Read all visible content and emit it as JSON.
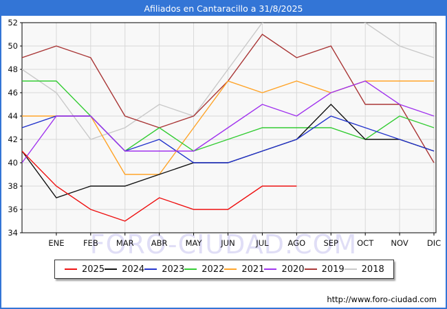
{
  "title": "Afiliados en Cantaracillo a 31/8/2025",
  "watermark": "FORO-CIUDAD.COM",
  "footer_url": "http://www.foro-ciudad.com",
  "colors": {
    "titlebar": "#3375d6",
    "frame": "#3375d6",
    "plot_background": "#f8f8f8",
    "plot_border": "#000000",
    "gridline": "#d8d8d8",
    "watermark": "#e0def6",
    "tick_label": "#111111"
  },
  "chart_data": {
    "type": "line",
    "title": "Afiliados en Cantaracillo a 31/8/2025",
    "x_categories": [
      "ENE",
      "FEB",
      "MAR",
      "ABR",
      "MAY",
      "JUN",
      "JUL",
      "AGO",
      "SEP",
      "OCT",
      "NOV",
      "DIC"
    ],
    "x_note": "first value of each series is plotted at the plot left edge, one slot before ENE",
    "ylim": [
      34,
      52
    ],
    "ytick_step": 2,
    "grid": true,
    "legend_position": "bottom",
    "series": [
      {
        "name": "2025",
        "color": "#ee1111",
        "values": [
          41,
          38,
          36,
          35,
          37,
          36,
          36,
          38,
          38
        ],
        "note": "ends at AGO"
      },
      {
        "name": "2024",
        "color": "#111111",
        "values": [
          41,
          37,
          38,
          38,
          39,
          40,
          40,
          41,
          42,
          45,
          42,
          42,
          41
        ]
      },
      {
        "name": "2023",
        "color": "#2233cc",
        "values": [
          43,
          44,
          44,
          41,
          42,
          40,
          40,
          41,
          42,
          44,
          43,
          42,
          41
        ]
      },
      {
        "name": "2022",
        "color": "#33cc33",
        "values": [
          47,
          47,
          44,
          41,
          43,
          41,
          42,
          43,
          43,
          43,
          42,
          44,
          43
        ]
      },
      {
        "name": "2021",
        "color": "#ffa428",
        "values": [
          44,
          44,
          44,
          39,
          39,
          43,
          47,
          46,
          47,
          46,
          47,
          47,
          47
        ]
      },
      {
        "name": "2020",
        "color": "#a033ee",
        "values": [
          40,
          44,
          44,
          41,
          41,
          41,
          43,
          45,
          44,
          46,
          47,
          45,
          44
        ]
      },
      {
        "name": "2019",
        "color": "#a93636",
        "values": [
          49,
          50,
          49,
          44,
          43,
          44,
          47,
          51,
          49,
          50,
          45,
          45,
          40
        ]
      },
      {
        "name": "2018",
        "color": "#c9c9c9",
        "values": [
          48,
          46,
          42,
          43,
          45,
          44,
          48,
          52,
          53,
          53,
          52,
          50,
          49
        ],
        "note": "AGO and SEP exceed the 52 axis maximum and are clipped at the top of the plot"
      }
    ]
  }
}
